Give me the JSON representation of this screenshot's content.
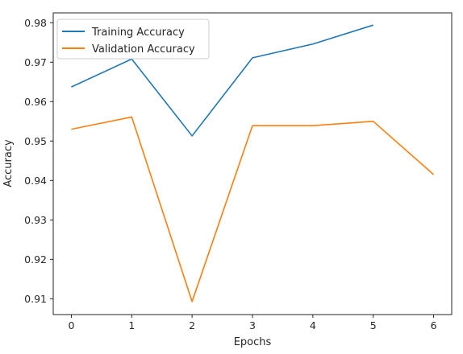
{
  "chart_data": {
    "type": "line",
    "xlabel": "Epochs",
    "ylabel": "Accuracy",
    "xlim": [
      -0.3,
      6.3
    ],
    "ylim": [
      0.906,
      0.9825
    ],
    "x_ticks": [
      0,
      1,
      2,
      3,
      4,
      5,
      6
    ],
    "y_ticks": [
      0.91,
      0.92,
      0.93,
      0.94,
      0.95,
      0.96,
      0.97,
      0.98
    ],
    "grid": false,
    "legend_position": "upper-left",
    "series": [
      {
        "name": "Training Accuracy",
        "color": "#1f77b4",
        "x": [
          0,
          1,
          2,
          3,
          4,
          5
        ],
        "values": [
          0.9637,
          0.9708,
          0.9513,
          0.9711,
          0.9746,
          0.9794
        ]
      },
      {
        "name": "Validation Accuracy",
        "color": "#ff7f0e",
        "x": [
          0,
          1,
          2,
          3,
          4,
          5,
          6
        ],
        "values": [
          0.953,
          0.9561,
          0.9093,
          0.9539,
          0.9539,
          0.955,
          0.9415
        ]
      }
    ]
  }
}
